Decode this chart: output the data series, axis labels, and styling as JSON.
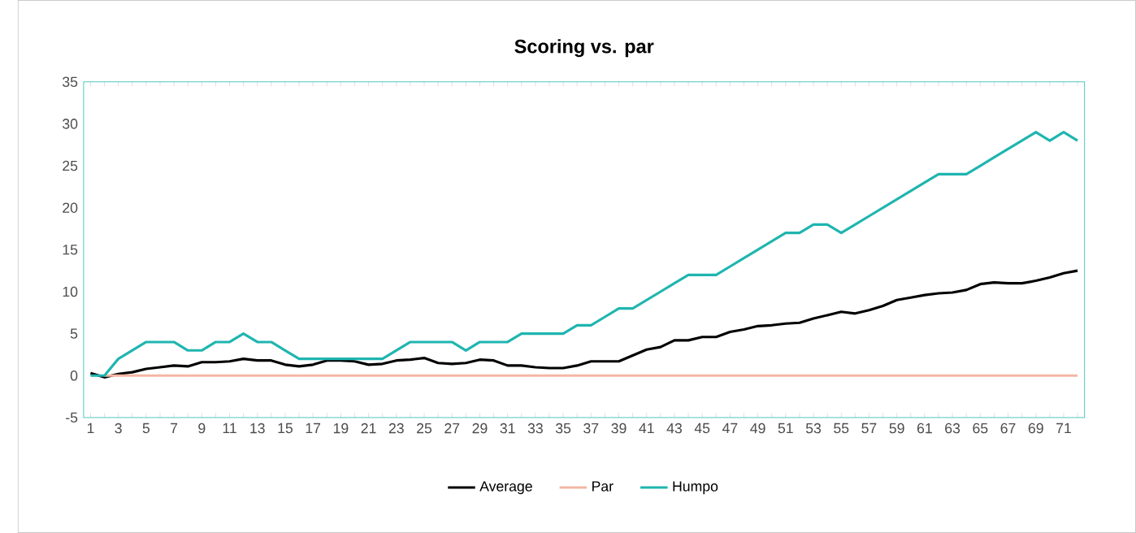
{
  "chart_data": {
    "type": "line",
    "title": "Scoring vs. par",
    "categories": [
      "1",
      null,
      "3",
      null,
      "5",
      null,
      "7",
      null,
      "9",
      null,
      "11",
      null,
      "13",
      null,
      "15",
      null,
      "17",
      null,
      "19",
      null,
      "21",
      null,
      "23",
      null,
      "25",
      null,
      "27",
      null,
      "29",
      null,
      "31",
      null,
      "33",
      null,
      "35",
      null,
      "37",
      null,
      "39",
      null,
      "41",
      null,
      "43",
      null,
      "45",
      null,
      "47",
      null,
      "49",
      null,
      "51",
      null,
      "53",
      null,
      "55",
      null,
      "57",
      null,
      "59",
      null,
      "61",
      null,
      "63",
      null,
      "65",
      null,
      "67",
      null,
      "69",
      null,
      "71",
      null
    ],
    "series": [
      {
        "name": "Average",
        "color": "#000000",
        "values": [
          0.3,
          -0.2,
          0.2,
          0.4,
          0.8,
          1.0,
          1.2,
          1.1,
          1.6,
          1.6,
          1.7,
          2.0,
          1.8,
          1.8,
          1.3,
          1.1,
          1.3,
          1.8,
          1.8,
          1.7,
          1.3,
          1.4,
          1.8,
          1.9,
          2.1,
          1.5,
          1.4,
          1.5,
          1.9,
          1.8,
          1.2,
          1.2,
          1.0,
          0.9,
          0.9,
          1.2,
          1.7,
          1.7,
          1.7,
          2.4,
          3.1,
          3.4,
          4.2,
          4.2,
          4.6,
          4.6,
          5.2,
          5.5,
          5.9,
          6.0,
          6.2,
          6.3,
          6.8,
          7.2,
          7.6,
          7.4,
          7.8,
          8.3,
          9.0,
          9.3,
          9.6,
          9.8,
          9.9,
          10.2,
          10.9,
          11.1,
          11.0,
          11.0,
          11.3,
          11.7,
          12.2,
          12.5
        ]
      },
      {
        "name": "Par",
        "color": "#f4b6a3",
        "values": [
          null,
          0,
          0,
          0,
          0,
          0,
          0,
          0,
          0,
          0,
          0,
          0,
          0,
          0,
          0,
          0,
          0,
          0,
          0,
          0,
          0,
          0,
          0,
          0,
          0,
          0,
          0,
          0,
          0,
          0,
          0,
          0,
          0,
          0,
          0,
          0,
          0,
          0,
          0,
          0,
          0,
          0,
          0,
          0,
          0,
          0,
          0,
          0,
          0,
          0,
          0,
          0,
          0,
          0,
          0,
          0,
          0,
          0,
          0,
          0,
          0,
          0,
          0,
          0,
          0,
          0,
          0,
          0,
          0,
          0,
          0,
          0
        ]
      },
      {
        "name": "Humpo",
        "color": "#1fb5b0",
        "values": [
          0,
          0,
          2,
          3,
          4,
          4,
          4,
          3,
          3,
          4,
          4,
          5,
          4,
          4,
          3,
          2,
          2,
          2,
          2,
          2,
          2,
          2,
          3,
          4,
          4,
          4,
          4,
          3,
          4,
          4,
          4,
          5,
          5,
          5,
          5,
          6,
          6,
          7,
          8,
          8,
          9,
          10,
          11,
          12,
          12,
          12,
          13,
          14,
          15,
          16,
          17,
          17,
          18,
          18,
          17,
          18,
          19,
          20,
          21,
          22,
          23,
          24,
          24,
          24,
          25,
          26,
          27,
          28,
          29,
          28,
          29,
          28
        ]
      }
    ],
    "ylim": [
      -5,
      35
    ],
    "yticks": [
      -5,
      0,
      5,
      10,
      15,
      20,
      25,
      30,
      35
    ],
    "grid": false,
    "legend": "bottom"
  }
}
